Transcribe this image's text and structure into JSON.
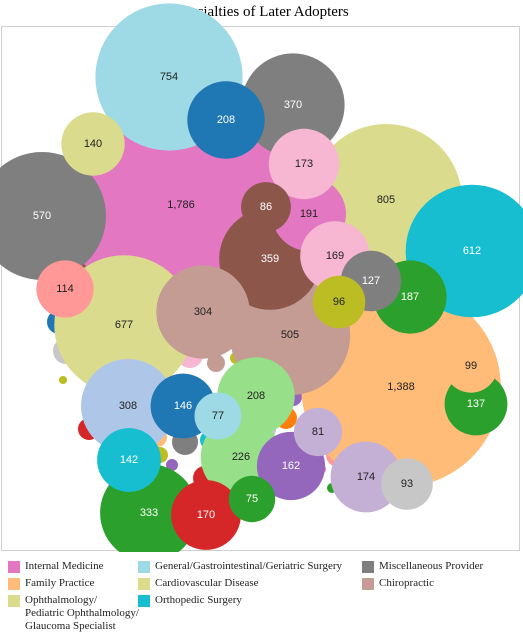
{
  "chart_data": {
    "type": "bubble",
    "title": "Specialties of Later Adopters",
    "categories": [
      {
        "key": "IM",
        "name": "Internal Medicine",
        "color": "#e377c2"
      },
      {
        "key": "GS",
        "name": "General/Gastrointestinal/Geriatric Surgery",
        "color": "#9edae5"
      },
      {
        "key": "MP",
        "name": "Miscellaneous Provider",
        "color": "#7f7f7f"
      },
      {
        "key": "FP",
        "name": "Family Practice",
        "color": "#ffbb78"
      },
      {
        "key": "CD",
        "name": "Cardiovascular Disease",
        "color": "#dbdb8d"
      },
      {
        "key": "CH",
        "name": "Chiropractic",
        "color": "#c49c94"
      },
      {
        "key": "OPH",
        "name": "Ophthalmology/\nPediatric Ophthalmology/\nGlaucoma Specialist",
        "color": "#dbdb8d"
      },
      {
        "key": "OS",
        "name": "Orthopedic Surgery",
        "color": "#17becf"
      }
    ],
    "bubbles": [
      {
        "value": 1786,
        "label": "1,786",
        "color": "#e377c2"
      },
      {
        "value": 1388,
        "label": "1,388",
        "color": "#ffbb78"
      },
      {
        "value": 805,
        "label": "805",
        "color": "#dbdb8d"
      },
      {
        "value": 754,
        "label": "754",
        "color": "#9edae5"
      },
      {
        "value": 677,
        "label": "677",
        "color": "#dbdb8d"
      },
      {
        "value": 612,
        "label": "612",
        "color": "#17becf"
      },
      {
        "value": 570,
        "label": "570",
        "color": "#7f7f7f"
      },
      {
        "value": 505,
        "label": "505",
        "color": "#c49c94"
      },
      {
        "value": 370,
        "label": "370",
        "color": "#7f7f7f"
      },
      {
        "value": 359,
        "label": "359",
        "color": "#8c564b"
      },
      {
        "value": 333,
        "label": "333",
        "color": "#2ca02c"
      },
      {
        "value": 308,
        "label": "308",
        "color": "#aec7e8"
      },
      {
        "value": 304,
        "label": "304",
        "color": "#c49c94"
      },
      {
        "value": 226,
        "label": "226",
        "color": "#98df8a"
      },
      {
        "value": 208,
        "label": "208",
        "color": "#1f77b4"
      },
      {
        "value": 208,
        "label": "208",
        "color": "#98df8a"
      },
      {
        "value": 191,
        "label": "191",
        "color": "#e377c2"
      },
      {
        "value": 187,
        "label": "187",
        "color": "#2ca02c"
      },
      {
        "value": 174,
        "label": "174",
        "color": "#c5b0d5"
      },
      {
        "value": 173,
        "label": "173",
        "color": "#f7b6d2"
      },
      {
        "value": 170,
        "label": "170",
        "color": "#d62728"
      },
      {
        "value": 169,
        "label": "169",
        "color": "#f7b6d2"
      },
      {
        "value": 162,
        "label": "162",
        "color": "#9467bd"
      },
      {
        "value": 146,
        "label": "146",
        "color": "#1f77b4"
      },
      {
        "value": 142,
        "label": "142",
        "color": "#17becf"
      },
      {
        "value": 140,
        "label": "140",
        "color": "#dbdb8d"
      },
      {
        "value": 137,
        "label": "137",
        "color": "#2ca02c"
      },
      {
        "value": 127,
        "label": "127",
        "color": "#7f7f7f"
      },
      {
        "value": 114,
        "label": "114",
        "color": "#ff9896"
      },
      {
        "value": 99,
        "label": "99",
        "color": "#ffbb78"
      },
      {
        "value": 96,
        "label": "96",
        "color": "#bcbd22"
      },
      {
        "value": 93,
        "label": "93",
        "color": "#c7c7c7"
      },
      {
        "value": 86,
        "label": "86",
        "color": "#8c564b"
      },
      {
        "value": 81,
        "label": "81",
        "color": "#c5b0d5"
      },
      {
        "value": 77,
        "label": "77",
        "color": "#9edae5"
      },
      {
        "value": 75,
        "label": "75",
        "color": "#2ca02c"
      }
    ],
    "unlabeled_bubble_colors": [
      "#17becf",
      "#bcbd22",
      "#9467bd",
      "#d62728",
      "#98df8a",
      "#8c564b",
      "#ff7f0e",
      "#1f77b4",
      "#c7c7c7",
      "#e377c2",
      "#ff9896",
      "#2ca02c",
      "#f7b6d2",
      "#c49c94",
      "#bcbd22",
      "#17becf",
      "#ff7f0e",
      "#9467bd",
      "#8c564b",
      "#d62728",
      "#98df8a",
      "#aec7e8",
      "#ffbb78",
      "#7f7f7f"
    ]
  }
}
